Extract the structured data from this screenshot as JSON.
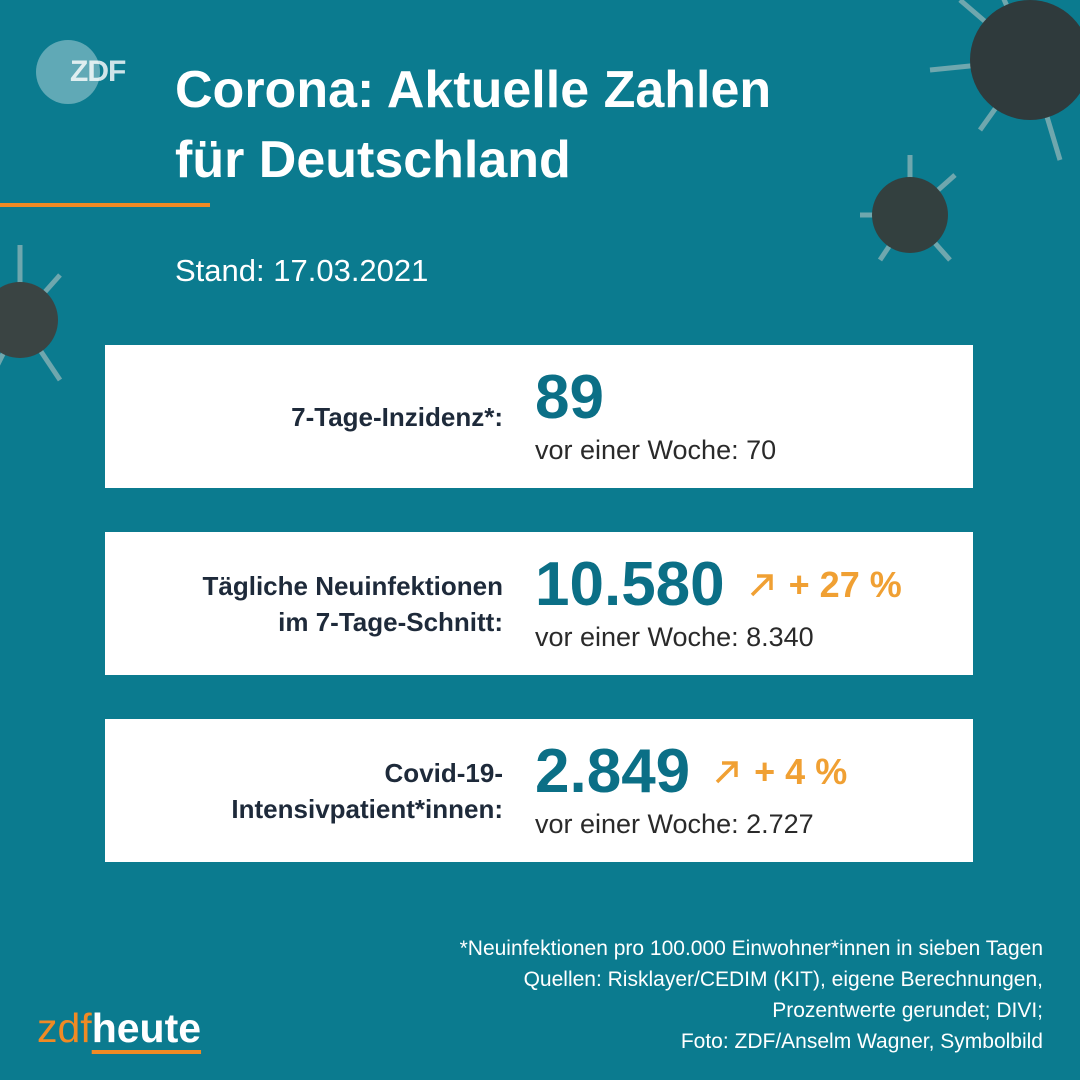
{
  "logo": "ZDF",
  "title_lines": [
    "Corona: Aktuelle Zahlen",
    "für Deutschland"
  ],
  "date": "Stand: 17.03.2021",
  "cards": [
    {
      "label_lines": [
        "7-Tage-Inzidenz*:"
      ],
      "value": "89",
      "previous": "vor einer Woche: 70"
    },
    {
      "label_lines": [
        "Tägliche Neuinfektionen",
        "im 7-Tage-Schnitt:"
      ],
      "value": "10.580",
      "change": "+ 27 %",
      "previous": "vor einer Woche: 8.340"
    },
    {
      "label_lines": [
        "Covid-19-",
        "Intensivpatient*innen:"
      ],
      "value": "2.849",
      "change": "+ 4 %",
      "previous": "vor einer Woche: 2.727"
    }
  ],
  "footnote_lines": [
    "*Neuinfektionen pro 100.000 Einwohner*innen in sieben Tagen",
    "Quellen: Risklayer/CEDIM (KIT), eigene Berechnungen,",
    "Prozentwerte gerundet; DIVI;",
    "Foto: ZDF/Anselm Wagner, Symbolbild"
  ],
  "brand": {
    "part1": "zdf",
    "part2": "heute"
  }
}
